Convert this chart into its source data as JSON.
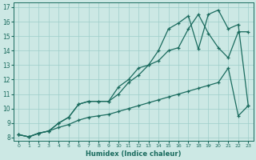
{
  "xlabel": "Humidex (Indice chaleur)",
  "xlim": [
    -0.5,
    23.5
  ],
  "ylim": [
    7.8,
    17.3
  ],
  "xticks": [
    0,
    1,
    2,
    3,
    4,
    5,
    6,
    7,
    8,
    9,
    10,
    11,
    12,
    13,
    14,
    15,
    16,
    17,
    18,
    19,
    20,
    21,
    22,
    23
  ],
  "yticks": [
    8,
    9,
    10,
    11,
    12,
    13,
    14,
    15,
    16,
    17
  ],
  "bg_color": "#cce8e4",
  "grid_color": "#9dcec9",
  "line_color": "#1a6b5e",
  "line1_x": [
    0,
    1,
    2,
    3,
    4,
    5,
    6,
    7,
    8,
    9,
    10,
    11,
    12,
    13,
    14,
    15,
    16,
    17,
    18,
    19,
    20,
    21,
    22,
    23
  ],
  "line1_y": [
    8.2,
    8.05,
    8.3,
    8.45,
    9.0,
    9.4,
    10.3,
    10.5,
    10.5,
    10.5,
    11.0,
    11.8,
    12.3,
    13.0,
    13.3,
    14.0,
    14.2,
    15.5,
    16.5,
    15.2,
    14.2,
    13.5,
    15.3,
    15.3
  ],
  "line2_x": [
    0,
    1,
    2,
    3,
    4,
    5,
    6,
    7,
    8,
    9,
    10,
    11,
    12,
    13,
    14,
    15,
    16,
    17,
    18,
    19,
    20,
    21,
    22,
    23
  ],
  "line2_y": [
    8.2,
    8.05,
    8.3,
    8.45,
    9.0,
    9.4,
    10.3,
    10.5,
    10.5,
    10.5,
    11.5,
    12.0,
    12.8,
    13.0,
    14.0,
    15.5,
    15.9,
    16.4,
    14.1,
    16.5,
    16.8,
    15.5,
    15.8,
    10.2
  ],
  "line3_x": [
    0,
    1,
    2,
    3,
    4,
    5,
    6,
    7,
    8,
    9,
    10,
    11,
    12,
    13,
    14,
    15,
    16,
    17,
    18,
    19,
    20,
    21,
    22,
    23
  ],
  "line3_y": [
    8.2,
    8.05,
    8.3,
    8.45,
    8.7,
    8.9,
    9.2,
    9.4,
    9.5,
    9.6,
    9.8,
    10.0,
    10.2,
    10.4,
    10.6,
    10.8,
    11.0,
    11.2,
    11.4,
    11.6,
    11.8,
    12.8,
    9.5,
    10.2
  ]
}
